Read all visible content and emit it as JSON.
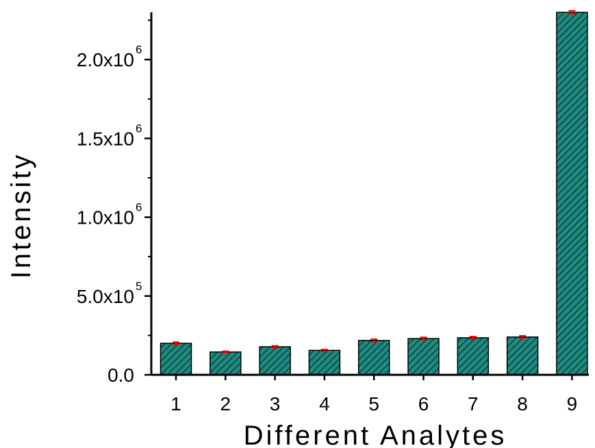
{
  "chart_data": {
    "type": "bar",
    "title": "",
    "xlabel": "Different Analytes",
    "ylabel": "Intensity",
    "categories": [
      "1",
      "2",
      "3",
      "4",
      "5",
      "6",
      "7",
      "8",
      "9"
    ],
    "values": [
      200000,
      145000,
      178000,
      155000,
      218000,
      230000,
      235000,
      240000,
      2300000
    ],
    "errors": [
      7000,
      5000,
      6000,
      6000,
      8000,
      8000,
      8000,
      8000,
      10000
    ],
    "ylim": [
      0,
      2300000
    ],
    "yticks": [
      {
        "value": 0,
        "mantissa": "0.0",
        "exponent": ""
      },
      {
        "value": 500000,
        "mantissa": "5.0x10",
        "exponent": "5"
      },
      {
        "value": 1000000,
        "mantissa": "1.0x10",
        "exponent": "6"
      },
      {
        "value": 1500000,
        "mantissa": "1.5x10",
        "exponent": "6"
      },
      {
        "value": 2000000,
        "mantissa": "2.0x10",
        "exponent": "6"
      }
    ],
    "grid": false,
    "bar_color": "#1f8a80",
    "hatch": "diagonal",
    "error_color": "#ff0000"
  }
}
